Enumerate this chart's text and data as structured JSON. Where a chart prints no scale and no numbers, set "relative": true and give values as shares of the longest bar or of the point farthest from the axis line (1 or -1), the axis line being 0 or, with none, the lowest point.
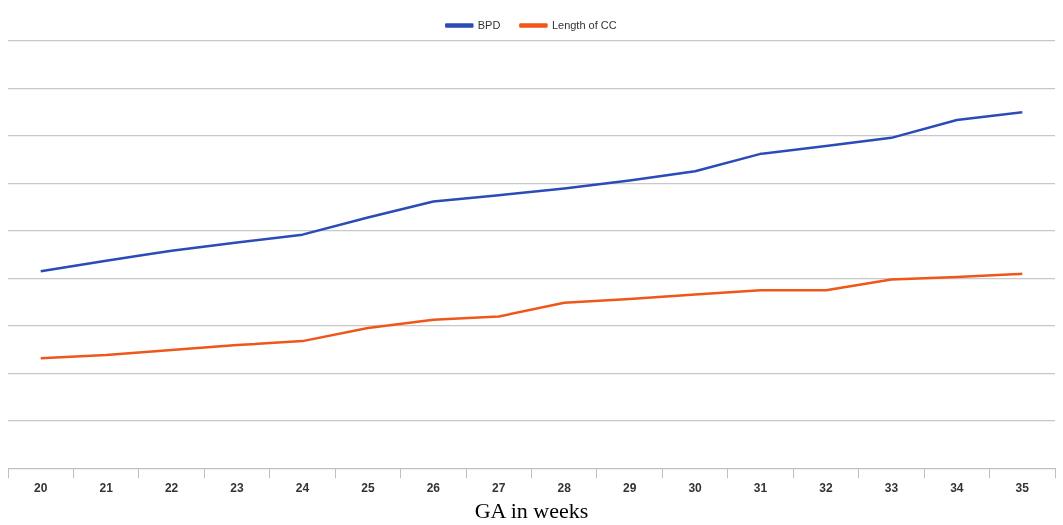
{
  "chart_data": {
    "type": "line",
    "xlabel": "GA in weeks",
    "relative": true,
    "grid": "y",
    "legend": "top",
    "marker": "none",
    "line_style": "solid",
    "categories": [
      "20",
      "21",
      "22",
      "23",
      "24",
      "25",
      "26",
      "27",
      "28",
      "29",
      "30",
      "31",
      "32",
      "33",
      "34",
      "35"
    ],
    "series": [
      {
        "name": "BPD",
        "color": "#2a4bb8",
        "values": [
          0.553,
          0.583,
          0.611,
          0.634,
          0.656,
          0.704,
          0.749,
          0.767,
          0.786,
          0.808,
          0.834,
          0.883,
          0.905,
          0.928,
          0.978,
          1
        ]
      },
      {
        "name": "Length of CC",
        "color": "#f0561a",
        "values": [
          0.309,
          0.318,
          0.332,
          0.346,
          0.357,
          0.394,
          0.417,
          0.426,
          0.465,
          0.475,
          0.488,
          0.5,
          0.5,
          0.53,
          0.537,
          0.546
        ]
      }
    ]
  }
}
